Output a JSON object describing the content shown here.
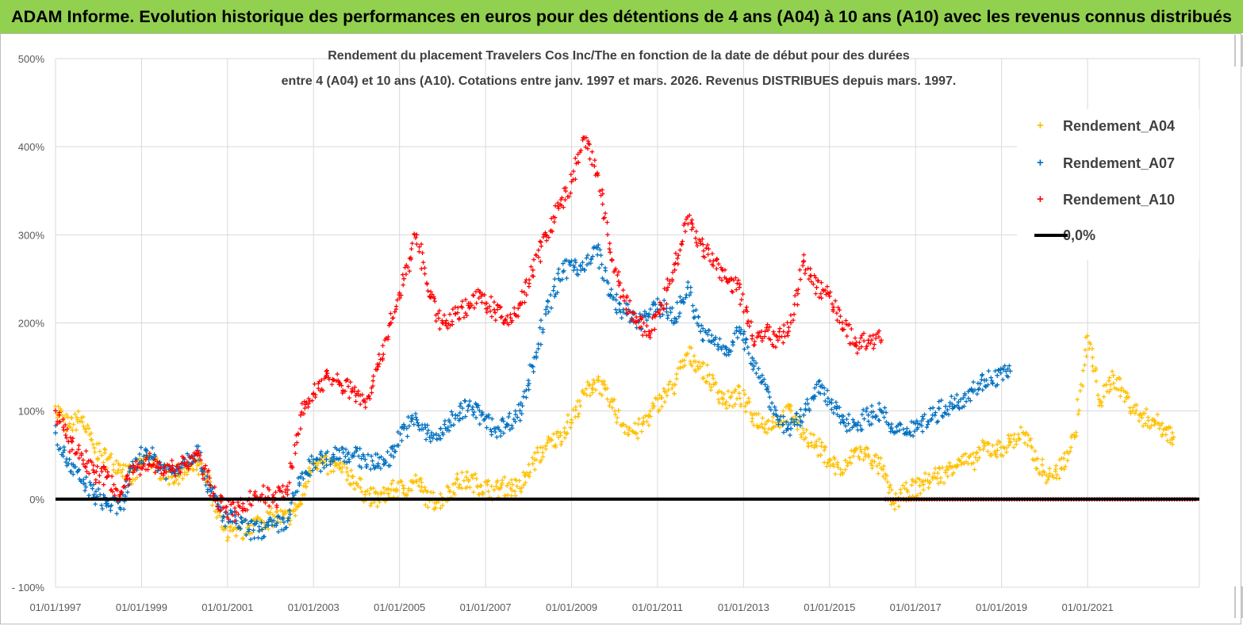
{
  "banner": {
    "title": "ADAM Informe. Evolution historique des performances en euros pour des détentions de 4 ans (A04) à 10 ans (A10) avec les revenus connus distribués"
  },
  "colors": {
    "banner_bg": "#92d050",
    "A04": "#ffc000",
    "A07": "#0070c0",
    "A10": "#ff0000",
    "zero_line": "#000000",
    "grid": "#d9d9d9"
  },
  "chart_data": {
    "type": "scatter",
    "title_lines": [
      "Rendement du placement Travelers Cos Inc/The en fonction de la date de début pour des durées",
      "entre 4 (A04) et 10 ans (A10). Cotations entre janv. 1997 et mars. 2026. Revenus DISTRIBUES depuis mars. 1997."
    ],
    "y_tick_labels": [
      "- 100%",
      "0%",
      "100%",
      "200%",
      "300%",
      "400%",
      "500%"
    ],
    "y_ticks": [
      -100,
      0,
      100,
      200,
      300,
      400,
      500
    ],
    "ylim": [
      -100,
      500
    ],
    "x_tick_labels": [
      "01/01/1997",
      "01/01/1999",
      "01/01/2001",
      "01/01/2003",
      "01/01/2005",
      "01/01/2007",
      "01/01/2009",
      "01/01/2011",
      "01/01/2013",
      "01/01/2015",
      "01/01/2017",
      "01/01/2019",
      "01/01/2021"
    ],
    "x_ticks": [
      1997,
      1999,
      2001,
      2003,
      2005,
      2007,
      2009,
      2011,
      2013,
      2015,
      2017,
      2019,
      2021
    ],
    "xlim": [
      1997,
      2023.6
    ],
    "grid": true,
    "legend_position": "right",
    "series": [
      {
        "name": "Rendement_A04",
        "key": "A04",
        "x": [
          1997.0,
          1997.3,
          1997.6,
          1997.9,
          1998.2,
          1998.5,
          1998.8,
          1999.1,
          1999.4,
          1999.7,
          2000.0,
          2000.3,
          2000.6,
          2000.9,
          2001.2,
          2001.5,
          2001.8,
          2002.1,
          2002.4,
          2002.7,
          2003.0,
          2003.3,
          2003.6,
          2003.9,
          2004.2,
          2004.5,
          2004.8,
          2005.1,
          2005.4,
          2005.7,
          2006.0,
          2006.3,
          2006.6,
          2006.9,
          2007.2,
          2007.5,
          2007.8,
          2008.1,
          2008.4,
          2008.7,
          2009.0,
          2009.3,
          2009.6,
          2009.9,
          2010.2,
          2010.5,
          2010.8,
          2011.1,
          2011.4,
          2011.7,
          2012.0,
          2012.3,
          2012.6,
          2012.9,
          2013.2,
          2013.5,
          2013.8,
          2014.1,
          2014.4,
          2014.7,
          2015.0,
          2015.3,
          2015.6,
          2015.9,
          2016.2,
          2016.5,
          2016.8,
          2017.1,
          2017.4,
          2017.7,
          2018.0,
          2018.3,
          2018.6,
          2018.9,
          2019.2,
          2019.5,
          2019.8,
          2020.1,
          2020.4,
          2020.7,
          2021.0,
          2021.3,
          2021.6,
          2021.9,
          2022.2,
          2022.5,
          2022.8,
          2023.0
        ],
        "y": [
          105,
          82,
          92,
          58,
          45,
          38,
          22,
          48,
          35,
          25,
          30,
          38,
          15,
          -35,
          -42,
          -30,
          -25,
          -20,
          -22,
          -5,
          45,
          38,
          35,
          25,
          5,
          0,
          10,
          12,
          20,
          -2,
          0,
          18,
          22,
          15,
          10,
          15,
          12,
          40,
          60,
          70,
          90,
          120,
          135,
          110,
          85,
          75,
          95,
          115,
          130,
          165,
          150,
          130,
          110,
          120,
          95,
          85,
          90,
          100,
          75,
          60,
          45,
          30,
          55,
          50,
          35,
          -5,
          10,
          15,
          25,
          30,
          45,
          40,
          60,
          55,
          65,
          75,
          45,
          25,
          35,
          70,
          185,
          110,
          140,
          115,
          95,
          90,
          80,
          70
        ]
      },
      {
        "name": "Rendement_A07",
        "key": "A07",
        "x": [
          1997.0,
          1997.3,
          1997.6,
          1997.9,
          1998.2,
          1998.5,
          1998.8,
          1999.1,
          1999.4,
          1999.7,
          2000.0,
          2000.3,
          2000.6,
          2000.9,
          2001.2,
          2001.5,
          2001.8,
          2002.1,
          2002.4,
          2002.7,
          2003.0,
          2003.3,
          2003.6,
          2003.9,
          2004.2,
          2004.5,
          2004.8,
          2005.1,
          2005.4,
          2005.7,
          2006.0,
          2006.3,
          2006.6,
          2006.9,
          2007.2,
          2007.5,
          2007.8,
          2008.1,
          2008.4,
          2008.7,
          2009.0,
          2009.3,
          2009.6,
          2009.9,
          2010.2,
          2010.5,
          2010.8,
          2011.1,
          2011.4,
          2011.7,
          2012.0,
          2012.3,
          2012.6,
          2012.9,
          2013.2,
          2013.5,
          2013.8,
          2014.1,
          2014.4,
          2014.7,
          2015.0,
          2015.3,
          2015.6,
          2015.9,
          2016.2,
          2016.5,
          2016.8,
          2017.1,
          2017.4,
          2017.7,
          2018.0,
          2018.3,
          2018.6,
          2018.9,
          2019.2
        ],
        "y": [
          75,
          40,
          20,
          5,
          -5,
          -10,
          35,
          55,
          40,
          30,
          45,
          55,
          10,
          -20,
          -25,
          -35,
          -35,
          -30,
          -25,
          25,
          40,
          45,
          55,
          50,
          45,
          40,
          50,
          80,
          90,
          70,
          75,
          95,
          105,
          95,
          80,
          85,
          100,
          150,
          210,
          250,
          270,
          260,
          285,
          230,
          215,
          200,
          210,
          220,
          205,
          240,
          190,
          180,
          170,
          190,
          160,
          130,
          90,
          80,
          95,
          130,
          110,
          90,
          85,
          95,
          100,
          75,
          80,
          85,
          95,
          105,
          110,
          125,
          135,
          140,
          145
        ]
      },
      {
        "name": "Rendement_A10",
        "key": "A10",
        "x": [
          1997.0,
          1997.3,
          1997.6,
          1997.9,
          1998.2,
          1998.5,
          1998.8,
          1999.1,
          1999.4,
          1999.7,
          2000.0,
          2000.3,
          2000.6,
          2000.9,
          2001.2,
          2001.5,
          2001.8,
          2002.1,
          2002.4,
          2002.7,
          2003.0,
          2003.3,
          2003.6,
          2003.9,
          2004.2,
          2004.5,
          2004.8,
          2005.1,
          2005.4,
          2005.7,
          2006.0,
          2006.3,
          2006.6,
          2006.9,
          2007.2,
          2007.5,
          2007.8,
          2008.1,
          2008.4,
          2008.7,
          2009.0,
          2009.3,
          2009.6,
          2009.9,
          2010.2,
          2010.5,
          2010.8,
          2011.1,
          2011.4,
          2011.7,
          2012.0,
          2012.3,
          2012.6,
          2012.9,
          2013.2,
          2013.5,
          2013.8,
          2014.1,
          2014.4,
          2014.7,
          2015.0,
          2015.3,
          2015.6,
          2015.9,
          2016.2
        ],
        "y": [
          100,
          65,
          50,
          30,
          25,
          5,
          30,
          45,
          35,
          35,
          40,
          50,
          15,
          -10,
          -15,
          0,
          5,
          0,
          10,
          95,
          120,
          140,
          130,
          125,
          110,
          150,
          200,
          250,
          300,
          230,
          200,
          210,
          220,
          230,
          215,
          200,
          220,
          260,
          300,
          330,
          360,
          410,
          370,
          280,
          230,
          200,
          190,
          220,
          260,
          320,
          290,
          270,
          250,
          240,
          185,
          190,
          180,
          200,
          270,
          240,
          230,
          200,
          175,
          180,
          180
        ]
      }
    ]
  }
}
